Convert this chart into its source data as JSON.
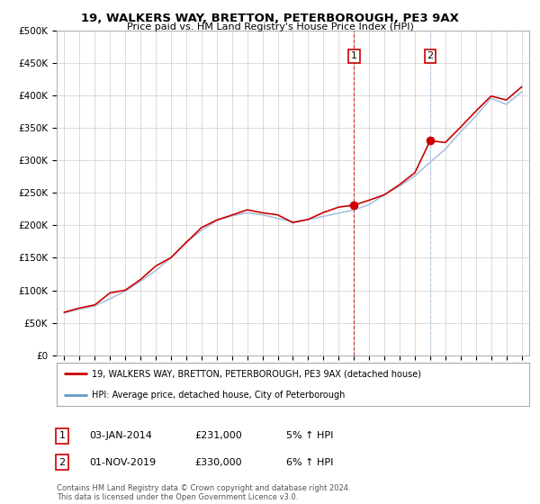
{
  "title": "19, WALKERS WAY, BRETTON, PETERBOROUGH, PE3 9AX",
  "subtitle": "Price paid vs. HM Land Registry's House Price Index (HPI)",
  "legend_line1": "19, WALKERS WAY, BRETTON, PETERBOROUGH, PE3 9AX (detached house)",
  "legend_line2": "HPI: Average price, detached house, City of Peterborough",
  "table_row1": [
    "1",
    "03-JAN-2014",
    "£231,000",
    "5% ↑ HPI"
  ],
  "table_row2": [
    "2",
    "01-NOV-2019",
    "£330,000",
    "6% ↑ HPI"
  ],
  "footer": "Contains HM Land Registry data © Crown copyright and database right 2024.\nThis data is licensed under the Open Government Licence v3.0.",
  "sale1_year": 2014,
  "sale1_value": 231000,
  "sale2_year": 2019,
  "sale2_value": 330000,
  "ylim": [
    0,
    500000
  ],
  "yticks": [
    0,
    50000,
    100000,
    150000,
    200000,
    250000,
    300000,
    350000,
    400000,
    450000,
    500000
  ],
  "hpi_color": "#aac4e0",
  "hpi_legend_color": "#6699cc",
  "price_color": "#cc0000",
  "vline1_color": "#cc0000",
  "vline2_color": "#aac4e0",
  "box1_color": "#cc0000",
  "box2_color": "#cc0000",
  "background_color": "#ffffff",
  "grid_color": "#cccccc"
}
